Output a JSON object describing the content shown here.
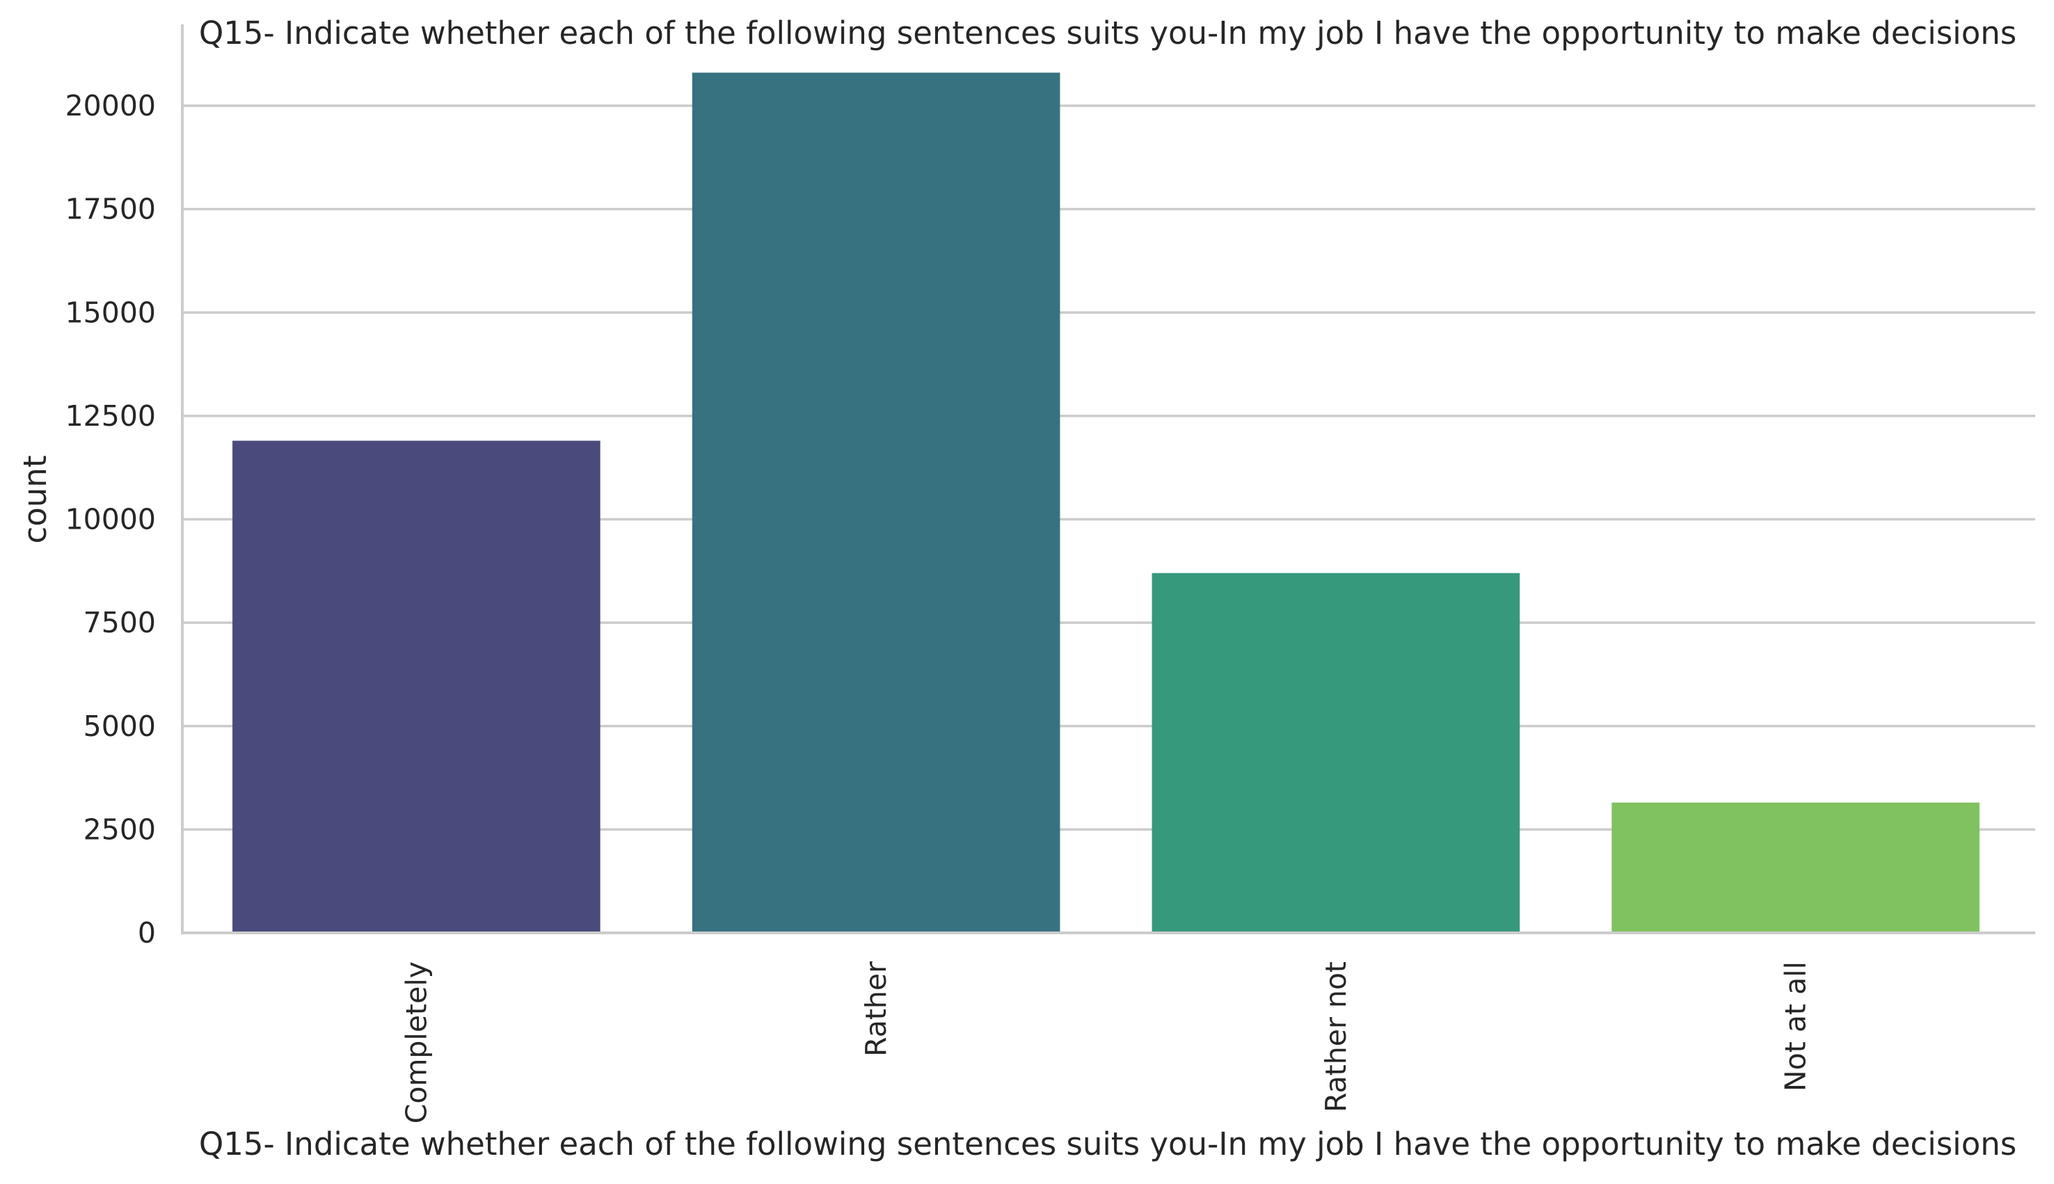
{
  "chart_data": {
    "type": "bar",
    "title": "Q15- Indicate whether each of the following sentences suits you-In my job I have the opportunity to make decisions",
    "xlabel": "Q15- Indicate whether each of the following sentences suits you-In my job I have the opportunity to make decisions",
    "ylabel": "count",
    "categories": [
      "Completely",
      "Rather",
      "Rather not",
      "Not at all"
    ],
    "values": [
      11900,
      20800,
      8700,
      3150
    ],
    "colors": [
      "#4a4b7c",
      "#377280",
      "#36997c",
      "#80c160"
    ],
    "ylim": [
      0,
      22000
    ],
    "yticks": [
      0,
      2500,
      5000,
      7500,
      10000,
      12500,
      15000,
      17500,
      20000
    ],
    "ytick_labels": [
      "0",
      "2500",
      "5000",
      "7500",
      "10000",
      "12500",
      "15000",
      "17500",
      "20000"
    ],
    "grid": "horizontal",
    "x_tick_rotation": "vertical"
  }
}
